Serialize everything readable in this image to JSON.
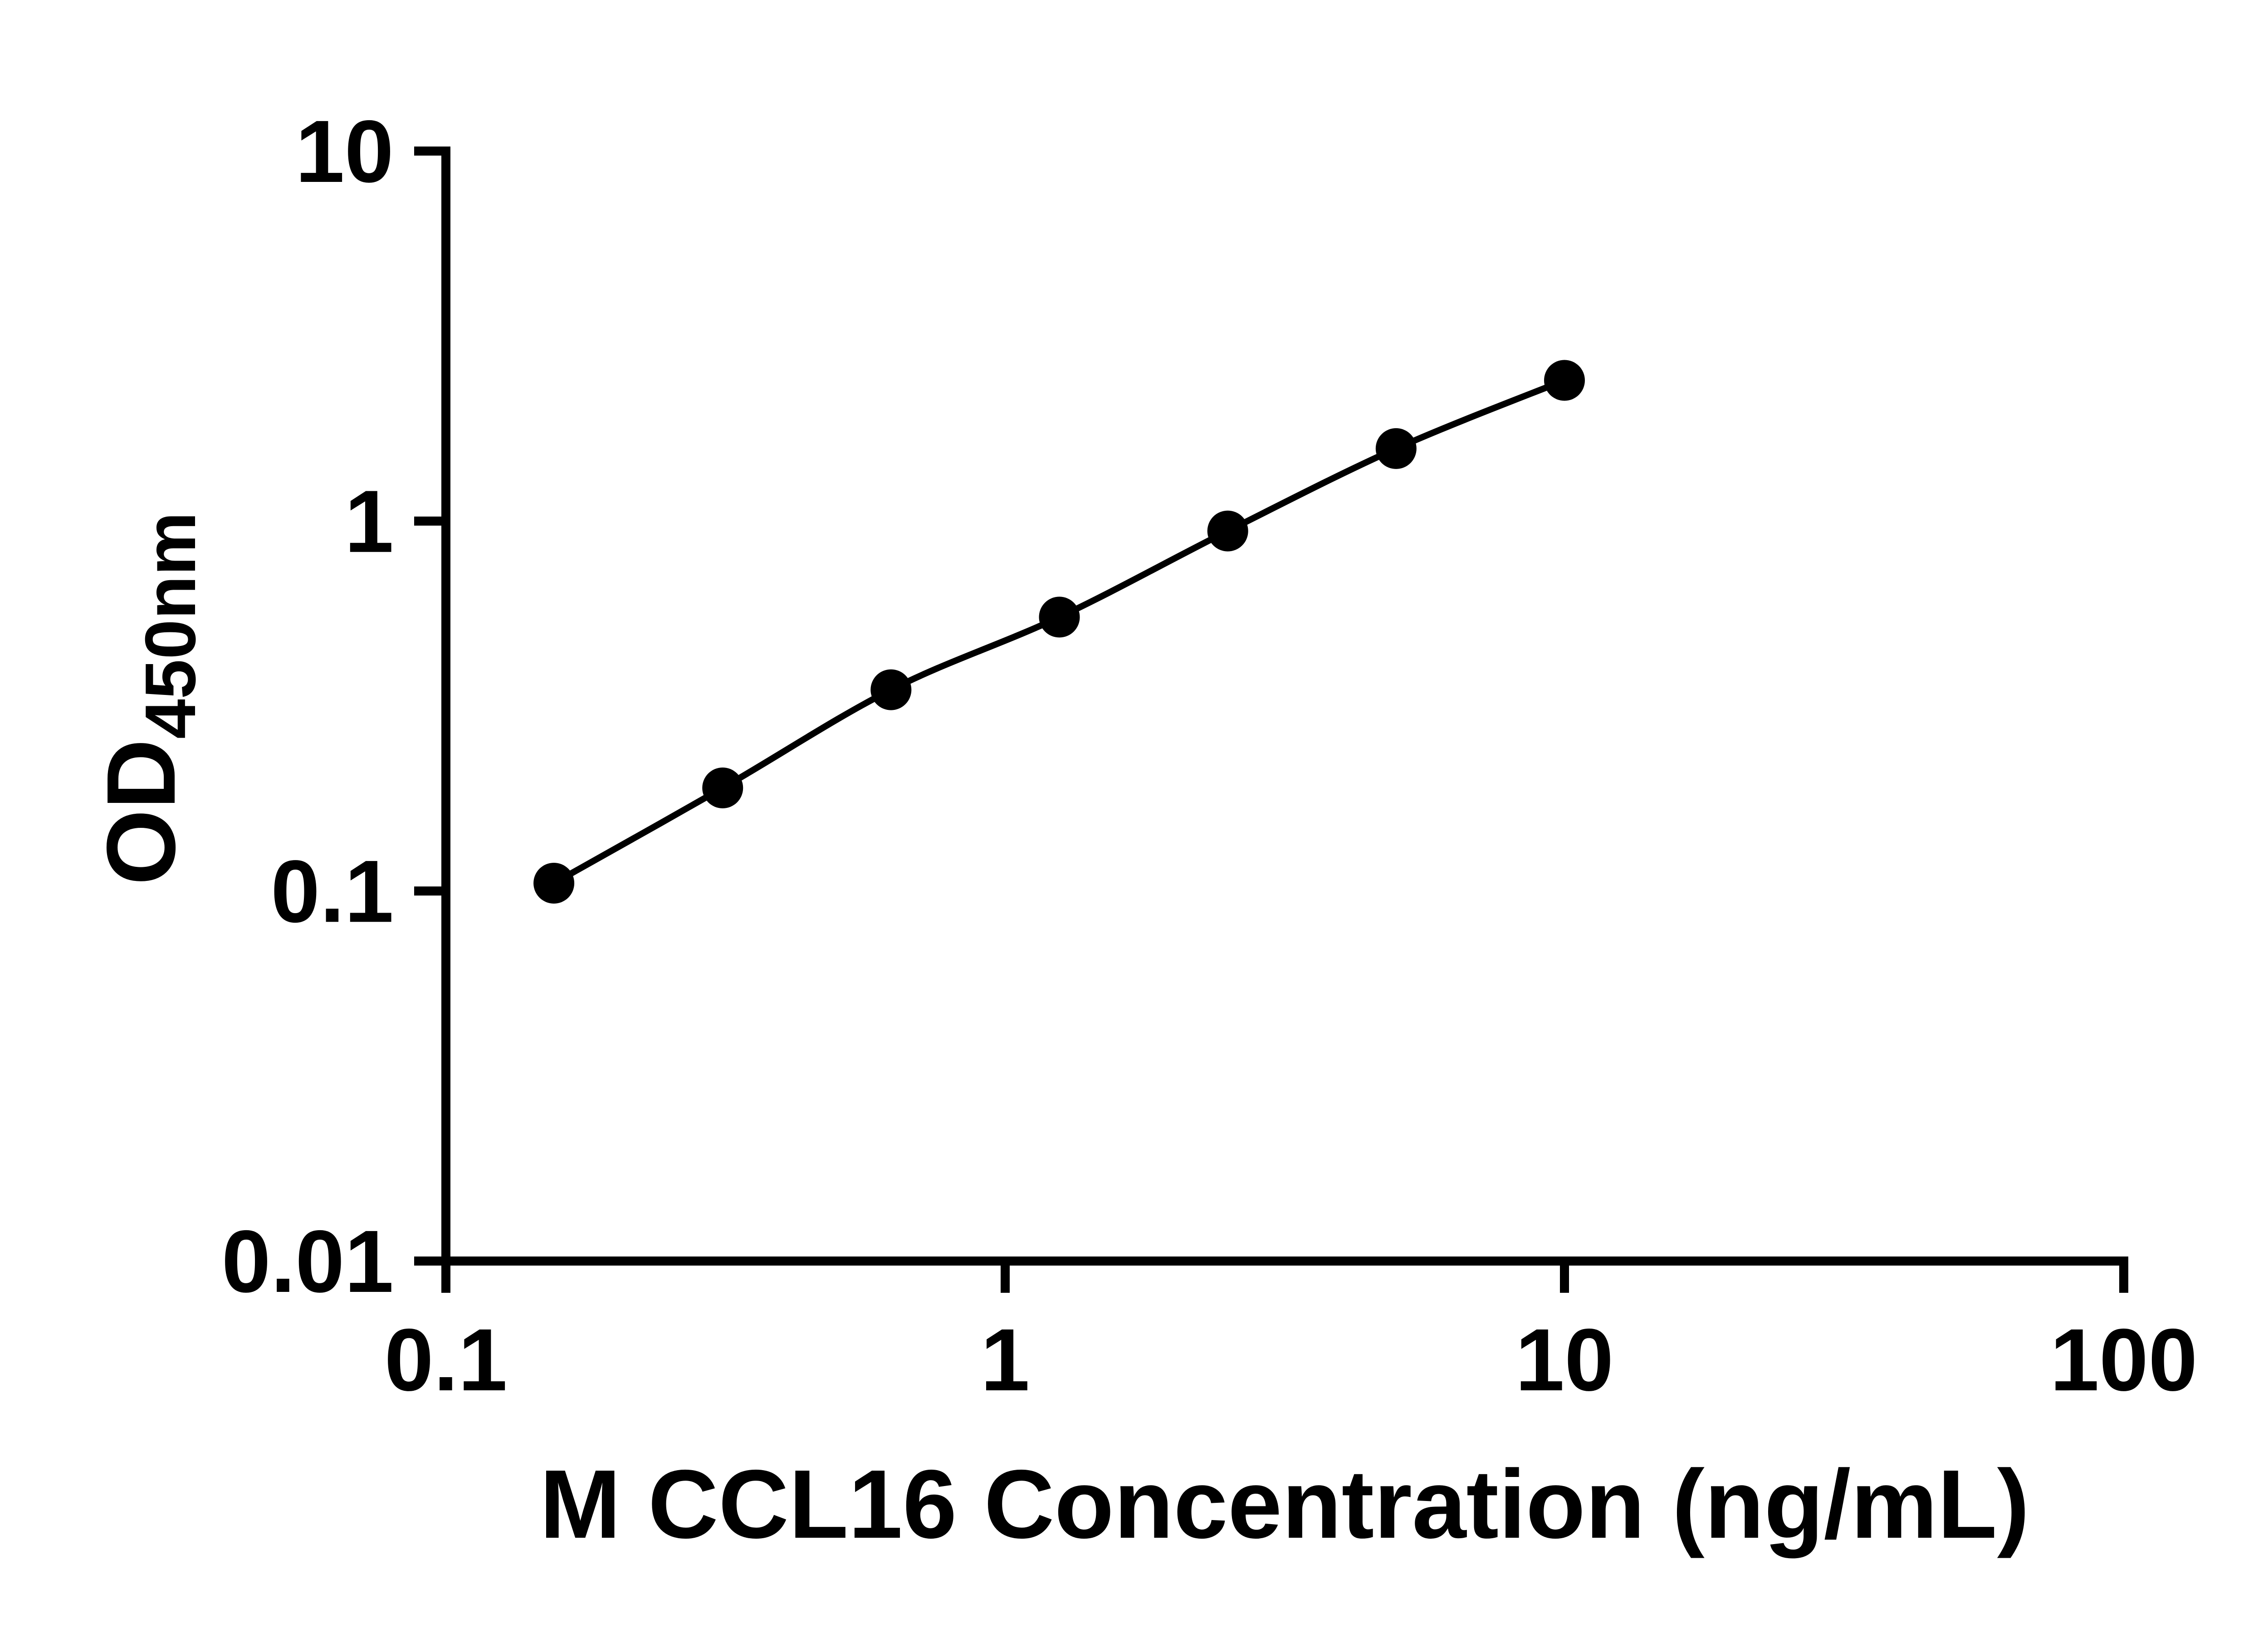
{
  "figure": {
    "background_color": "#ffffff",
    "foreground_color": "#000000"
  },
  "chart_data": {
    "type": "line",
    "subtype": "scatter-with-connecting-line",
    "title": "",
    "xlabel": "M CCL16 Concentration (ng/mL)",
    "ylabel": "OD450nm",
    "ylabel_main": "OD",
    "ylabel_sub": "450nm",
    "x_scale": "log10",
    "y_scale": "log10",
    "xlim": [
      0.1,
      100
    ],
    "ylim": [
      0.01,
      10
    ],
    "grid": false,
    "legend": false,
    "x_ticks": [
      {
        "value": 0.1,
        "label": "0.1"
      },
      {
        "value": 1,
        "label": "1"
      },
      {
        "value": 10,
        "label": "10"
      },
      {
        "value": 100,
        "label": "100"
      }
    ],
    "y_ticks": [
      {
        "value": 0.01,
        "label": "0.01"
      },
      {
        "value": 0.1,
        "label": "0.1"
      },
      {
        "value": 1,
        "label": "1"
      },
      {
        "value": 10,
        "label": "10"
      }
    ],
    "series": [
      {
        "marker": "circle",
        "marker_color": "#000000",
        "line_color": "#000000",
        "points": [
          {
            "x": 0.156,
            "y": 0.105
          },
          {
            "x": 0.3125,
            "y": 0.19
          },
          {
            "x": 0.625,
            "y": 0.35
          },
          {
            "x": 1.25,
            "y": 0.55
          },
          {
            "x": 2.5,
            "y": 0.94
          },
          {
            "x": 5,
            "y": 1.57
          },
          {
            "x": 10,
            "y": 2.4
          }
        ]
      }
    ]
  }
}
